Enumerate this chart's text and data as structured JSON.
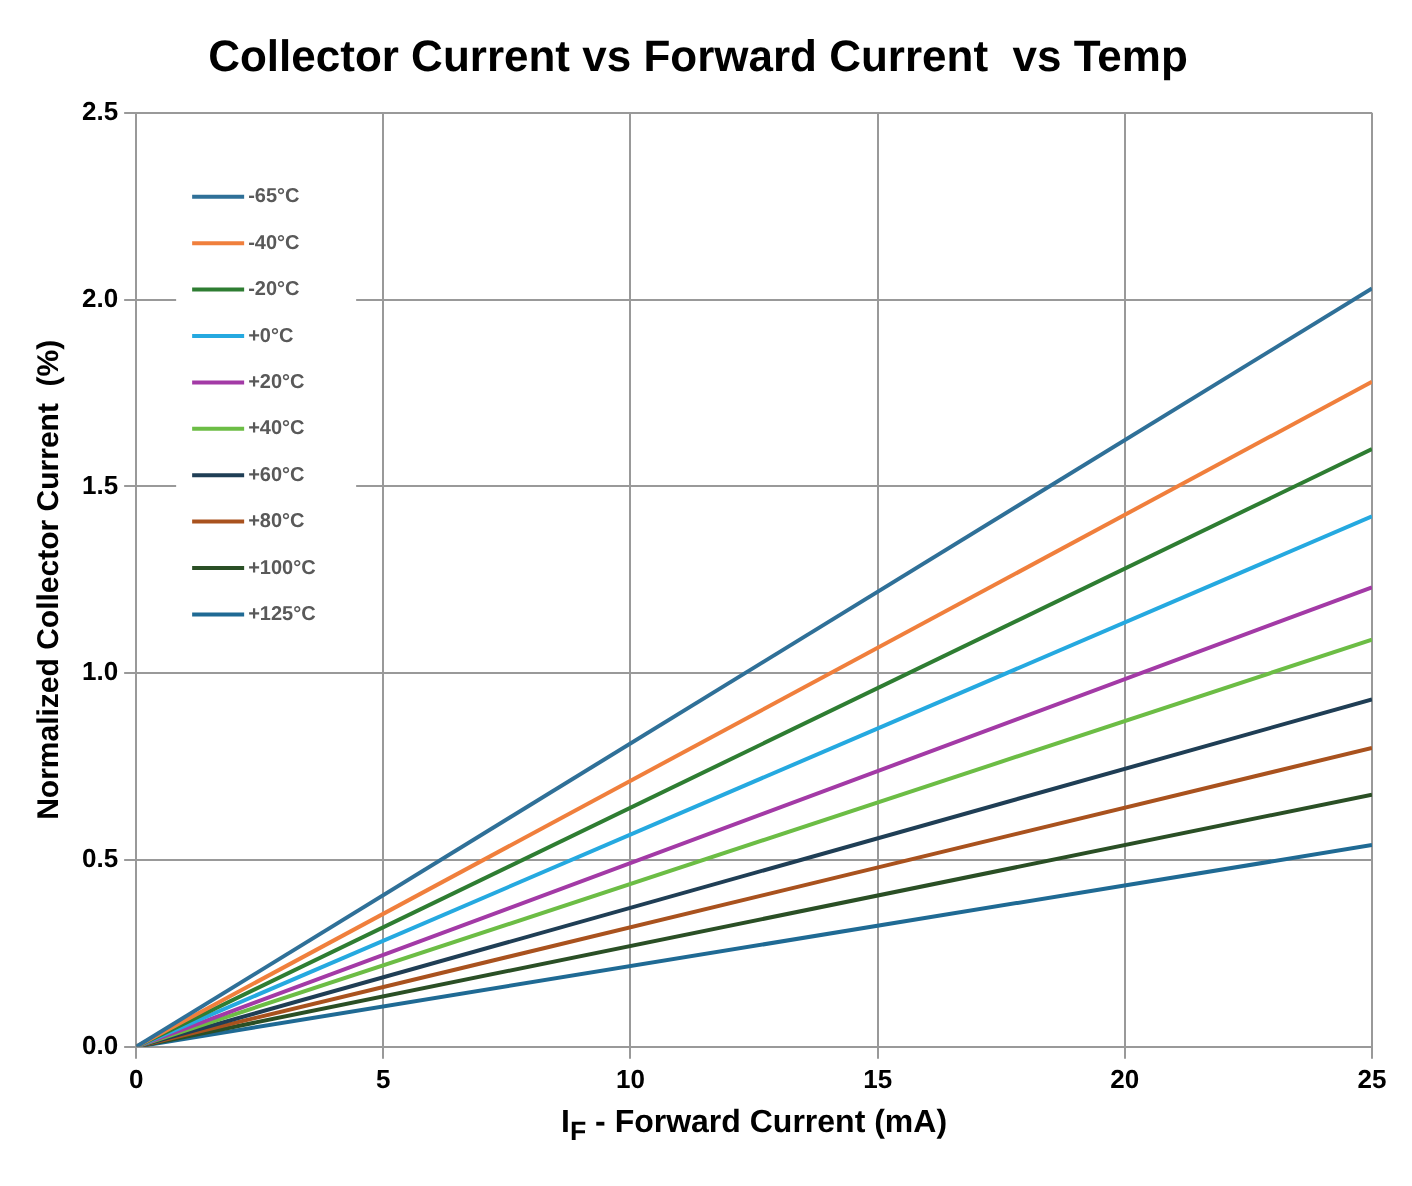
{
  "chart_data": {
    "type": "line",
    "title": "Collector Current vs Forward Current  vs Temp",
    "xlabel": "I$_{F}$ - Forward Current (mA)",
    "ylabel": "Normalized Collector Current  (%)",
    "x": [
      0,
      25
    ],
    "series": [
      {
        "name": "-65°C",
        "color": "#2f7098",
        "values": [
          0,
          2.03
        ]
      },
      {
        "name": "-40°C",
        "color": "#f07f3c",
        "values": [
          0,
          1.78
        ]
      },
      {
        "name": "-20°C",
        "color": "#2e7d32",
        "values": [
          0,
          1.6
        ]
      },
      {
        "name": "+0°C",
        "color": "#25a9e0",
        "values": [
          0,
          1.42
        ]
      },
      {
        "name": "+20°C",
        "color": "#a33aa6",
        "values": [
          0,
          1.23
        ]
      },
      {
        "name": "+40°C",
        "color": "#6cbd45",
        "values": [
          0,
          1.09
        ]
      },
      {
        "name": "+60°C",
        "color": "#1f3e55",
        "values": [
          0,
          0.93
        ]
      },
      {
        "name": "+80°C",
        "color": "#a9521e",
        "values": [
          0,
          0.8
        ]
      },
      {
        "name": "+100°C",
        "color": "#2a4f25",
        "values": [
          0,
          0.675
        ]
      },
      {
        "name": "+125°C",
        "color": "#1f6a94",
        "values": [
          0,
          0.54
        ]
      }
    ],
    "xlim": [
      0,
      25
    ],
    "xticks": [
      0,
      5,
      10,
      15,
      20,
      25
    ],
    "ylim": [
      0,
      2.5
    ],
    "yticks": [
      {
        "value": 0,
        "label": "0.0"
      },
      {
        "value": 0.5,
        "label": "0.5"
      },
      {
        "value": 1,
        "label": "1.0"
      },
      {
        "value": 1.5,
        "label": "1.5"
      },
      {
        "value": 2,
        "label": "2.0"
      },
      {
        "value": 2.5,
        "label": "2.5"
      }
    ],
    "grid": true,
    "legend": "top left",
    "marker": "none",
    "line_style": "solid"
  }
}
